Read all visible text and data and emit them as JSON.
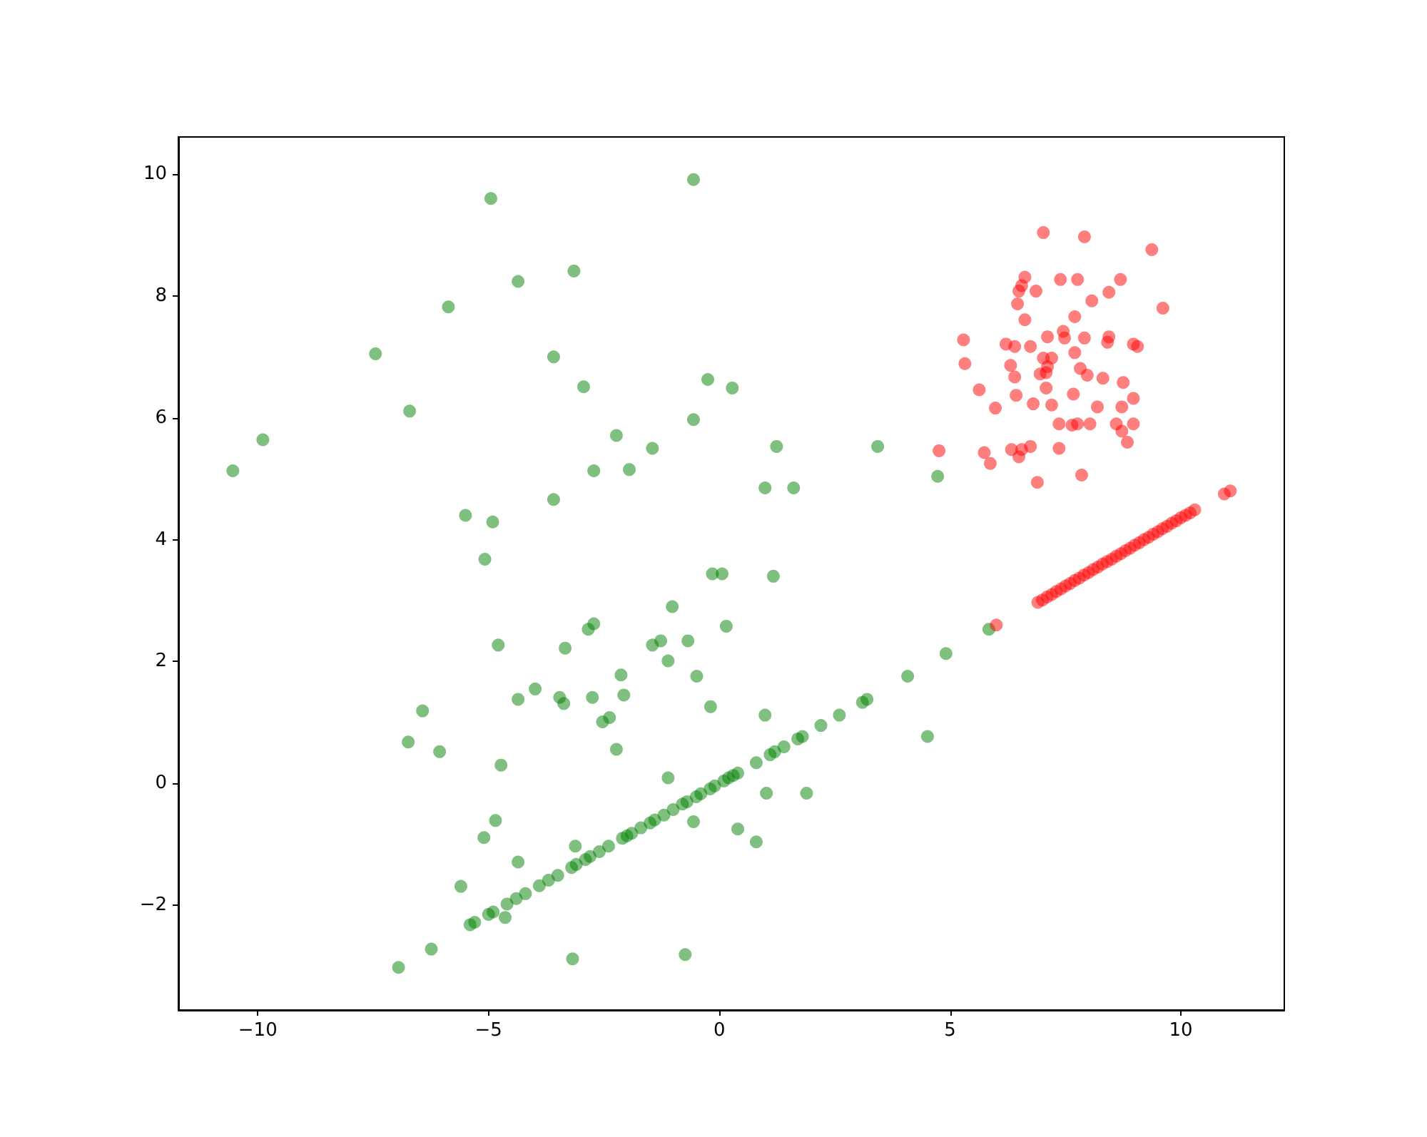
{
  "chart_data": {
    "type": "scatter",
    "marker": "circle",
    "grid": false,
    "xlim": [
      -11.72,
      12.24
    ],
    "ylim": [
      -3.72,
      10.61
    ],
    "xticks": [
      -10,
      -5,
      0,
      5,
      10
    ],
    "yticks": [
      -2,
      0,
      2,
      4,
      6,
      8,
      10
    ],
    "series": [
      {
        "color": "#008000",
        "x": [
          -10.54,
          -9.89,
          -7.45,
          -6.71,
          -5.87,
          -4.95,
          -0.56,
          -4.36,
          -3.15,
          -3.59,
          -2.94,
          -0.25,
          0.28,
          -0.56,
          -2.23,
          -1.45,
          -2.72,
          -1.95,
          1.24,
          3.43,
          0.99,
          1.61,
          4.73,
          -3.59,
          -5.5,
          -4.91,
          -5.08,
          -0.15,
          0.06,
          1.17,
          -1.02,
          -4.79,
          -3.34,
          -2.84,
          -2.72,
          -1.45,
          -1.27,
          -0.68,
          0.15,
          -1.11,
          -2.13,
          -0.49,
          4.08,
          4.91,
          5.84,
          -3.99,
          -3.46,
          -3.37,
          -2.75,
          -2.07,
          -4.36,
          -6.43,
          -2.53,
          -2.38,
          -0.19,
          0.99,
          -6.74,
          -6.06,
          -2.23,
          -4.73,
          4.51,
          -1.11,
          1.02,
          1.89,
          -4.85,
          -0.56,
          0.4,
          0.8,
          -5.1,
          -3.12,
          -4.36,
          -5.6,
          -4.64,
          -6.24,
          -6.95,
          -3.18,
          -0.74,
          -5.4,
          -5.3,
          -5.0,
          -4.9,
          -4.6,
          -4.4,
          -4.2,
          -3.9,
          -3.7,
          -3.5,
          -3.2,
          -3.1,
          -2.9,
          -2.8,
          -2.6,
          -2.4,
          -2.1,
          -2.0,
          -1.9,
          -1.7,
          -1.5,
          -1.4,
          -1.2,
          -1.0,
          -0.8,
          -0.7,
          -0.5,
          -0.4,
          -0.2,
          -0.1,
          0.1,
          0.2,
          0.3,
          0.4,
          0.8,
          1.1,
          1.2,
          1.4,
          1.7,
          1.8,
          2.2,
          2.6,
          3.1,
          3.2
        ],
        "values": [
          5.13,
          5.64,
          7.05,
          6.11,
          7.82,
          9.6,
          9.91,
          8.24,
          8.41,
          7.0,
          6.51,
          6.63,
          6.49,
          5.97,
          5.71,
          5.5,
          5.13,
          5.15,
          5.53,
          5.53,
          4.85,
          4.85,
          5.04,
          4.66,
          4.4,
          4.29,
          3.68,
          3.44,
          3.44,
          3.4,
          2.9,
          2.27,
          2.22,
          2.53,
          2.62,
          2.27,
          2.34,
          2.34,
          2.58,
          2.01,
          1.78,
          1.76,
          1.76,
          2.13,
          2.53,
          1.55,
          1.41,
          1.31,
          1.41,
          1.45,
          1.38,
          1.19,
          1.01,
          1.08,
          1.26,
          1.12,
          0.68,
          0.52,
          0.56,
          0.3,
          0.77,
          0.09,
          -0.16,
          -0.16,
          -0.61,
          -0.63,
          -0.75,
          -0.96,
          -0.89,
          -1.03,
          -1.29,
          -1.69,
          -2.2,
          -2.72,
          -3.02,
          -2.88,
          -2.81,
          -2.32,
          -2.28,
          -2.15,
          -2.11,
          -1.98,
          -1.89,
          -1.81,
          -1.68,
          -1.59,
          -1.51,
          -1.38,
          -1.33,
          -1.25,
          -1.2,
          -1.12,
          -1.03,
          -0.9,
          -0.86,
          -0.82,
          -0.73,
          -0.65,
          -0.6,
          -0.52,
          -0.43,
          -0.34,
          -0.3,
          -0.22,
          -0.17,
          -0.09,
          -0.04,
          0.04,
          0.09,
          0.13,
          0.17,
          0.34,
          0.47,
          0.52,
          0.6,
          0.73,
          0.77,
          0.95,
          1.12,
          1.33,
          1.38
        ]
      },
      {
        "color": "#ff0000",
        "x": [
          7.02,
          7.91,
          9.37,
          6.62,
          7.39,
          7.76,
          8.69,
          6.55,
          6.49,
          6.86,
          8.44,
          8.07,
          6.46,
          9.61,
          7.45,
          6.62,
          7.7,
          7.11,
          7.48,
          7.91,
          8.44,
          8.41,
          5.29,
          6.21,
          8.97,
          9.06,
          6.4,
          6.74,
          7.7,
          7.02,
          7.2,
          5.32,
          6.31,
          7.11,
          7.08,
          7.82,
          6.4,
          6.95,
          7.97,
          8.31,
          8.75,
          5.63,
          6.43,
          7.08,
          7.67,
          8.97,
          5.98,
          6.8,
          7.2,
          8.19,
          8.72,
          7.36,
          7.76,
          8.03,
          8.97,
          8.6,
          7.64,
          8.72,
          4.76,
          5.74,
          6.33,
          6.55,
          6.74,
          7.36,
          8.84,
          5.87,
          6.49,
          7.85,
          6.89,
          6.0,
          6.9,
          7.0,
          7.1,
          7.2,
          7.3,
          7.4,
          7.5,
          7.6,
          7.7,
          7.8,
          7.9,
          8.0,
          8.1,
          8.2,
          8.3,
          8.4,
          8.5,
          8.6,
          8.7,
          8.8,
          8.9,
          9.0,
          9.1,
          9.2,
          9.3,
          9.4,
          9.5,
          9.6,
          9.7,
          9.8,
          9.9,
          10.0,
          10.1,
          10.2,
          10.3,
          10.94,
          11.07
        ],
        "values": [
          9.04,
          8.97,
          8.76,
          8.31,
          8.27,
          8.27,
          8.27,
          8.17,
          8.08,
          8.08,
          8.06,
          7.92,
          7.87,
          7.8,
          7.42,
          7.61,
          7.66,
          7.33,
          7.31,
          7.31,
          7.33,
          7.24,
          7.28,
          7.21,
          7.21,
          7.17,
          7.17,
          7.17,
          7.07,
          6.98,
          6.98,
          6.89,
          6.86,
          6.84,
          6.74,
          6.81,
          6.67,
          6.72,
          6.7,
          6.65,
          6.58,
          6.46,
          6.37,
          6.49,
          6.39,
          6.32,
          6.16,
          6.23,
          6.21,
          6.18,
          6.18,
          5.9,
          5.9,
          5.9,
          5.9,
          5.9,
          5.88,
          5.78,
          5.46,
          5.43,
          5.48,
          5.48,
          5.53,
          5.5,
          5.6,
          5.25,
          5.36,
          5.06,
          4.94,
          2.6,
          2.97,
          3.01,
          3.06,
          3.1,
          3.15,
          3.19,
          3.24,
          3.28,
          3.33,
          3.37,
          3.42,
          3.46,
          3.51,
          3.55,
          3.6,
          3.64,
          3.68,
          3.73,
          3.77,
          3.82,
          3.86,
          3.91,
          3.95,
          4.0,
          4.04,
          4.09,
          4.13,
          4.18,
          4.22,
          4.27,
          4.31,
          4.36,
          4.4,
          4.44,
          4.49,
          4.75,
          4.8
        ]
      }
    ]
  }
}
